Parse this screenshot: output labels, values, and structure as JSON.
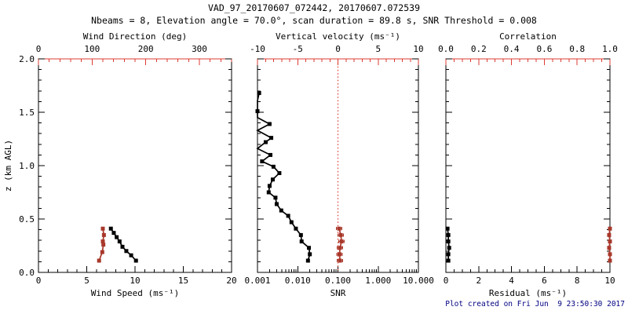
{
  "title": "VAD_97_20170607_072442, 20170607.072539",
  "subtitle": "Nbeams = 8, Elevation angle = 70.0°, scan duration = 89.8 s, SNR Threshold = 0.008",
  "footer": "Plot created on Fri Jun  9 23:50:30 2017",
  "colors": {
    "background": "#ffffff",
    "frame_black": "#000000",
    "axis_red": "#dd3b33",
    "marker_red": "#a8382b",
    "data_black": "#000000",
    "footer_blue": "#000080"
  },
  "yaxis": {
    "label": "z (km AGL)",
    "min": 0,
    "max": 2,
    "majors": [
      0,
      0.5,
      1,
      1.5,
      2
    ],
    "tick_labels": [
      "0.0",
      "0.5",
      "1.0",
      "1.5",
      "2.0"
    ],
    "minor_step": 0.1
  },
  "chart_data": [
    {
      "type": "line",
      "panel": "wind",
      "bottom_axis": {
        "label": "Wind Speed (ms⁻¹)",
        "min": 0,
        "max": 20,
        "majors": [
          0,
          5,
          10,
          15,
          20
        ],
        "tick_labels": [
          "0",
          "5",
          "10",
          "15",
          "20"
        ],
        "minor_step": 1
      },
      "top_axis": {
        "label": "Wind Direction (deg)",
        "min": 0,
        "max": 360,
        "majors": [
          0,
          100,
          200,
          300
        ],
        "tick_labels": [
          "0",
          "100",
          "200",
          "300"
        ],
        "minor_step": 20
      },
      "series": [
        {
          "name": "wind-speed",
          "axis": "bottom",
          "color": "black",
          "marker": "square",
          "points": [
            [
              0.41,
              7.5
            ],
            [
              0.37,
              7.8
            ],
            [
              0.33,
              8.1
            ],
            [
              0.29,
              8.4
            ],
            [
              0.24,
              8.7
            ],
            [
              0.2,
              9.1
            ],
            [
              0.16,
              9.6
            ],
            [
              0.11,
              10.1
            ]
          ]
        },
        {
          "name": "wind-direction",
          "axis": "top",
          "color": "red",
          "marker": "square",
          "points": [
            [
              0.41,
              120
            ],
            [
              0.35,
              122
            ],
            [
              0.29,
              120
            ],
            [
              0.26,
              121
            ],
            [
              0.19,
              119
            ],
            [
              0.11,
              113
            ]
          ]
        }
      ]
    },
    {
      "type": "line",
      "panel": "snr",
      "bottom_axis": {
        "label": "SNR",
        "scale": "log",
        "min": 0.001,
        "max": 10,
        "majors": [
          0.001,
          0.01,
          0.1,
          1,
          10
        ],
        "tick_labels": [
          "0.001",
          "0.010",
          "0.100",
          "1.000",
          "10.000"
        ]
      },
      "top_axis": {
        "label": "Vertical velocity (ms⁻¹)",
        "min": -10,
        "max": 10,
        "majors": [
          -10,
          -5,
          0,
          5,
          10
        ],
        "tick_labels": [
          "-10",
          "-5",
          "0",
          "5",
          "10"
        ],
        "minor_step": 1
      },
      "ref_line": {
        "axis": "top",
        "value": 0,
        "style": "dotted"
      },
      "series": [
        {
          "name": "snr-profile",
          "axis": "bottom",
          "color": "black",
          "marker": "square",
          "points": [
            [
              1.68,
              0.0011
            ],
            [
              1.61,
              0.0007,
              1
            ],
            [
              1.51,
              0.001
            ],
            [
              1.45,
              0.0007,
              1
            ],
            [
              1.39,
              0.002
            ],
            [
              1.33,
              0.0007,
              1
            ],
            [
              1.26,
              0.0022
            ],
            [
              1.22,
              0.0016
            ],
            [
              1.16,
              0.0007,
              1
            ],
            [
              1.1,
              0.0021
            ],
            [
              1.04,
              0.0013
            ],
            [
              0.99,
              0.0025
            ],
            [
              0.93,
              0.0035
            ],
            [
              0.87,
              0.0024
            ],
            [
              0.81,
              0.002
            ],
            [
              0.75,
              0.0019
            ],
            [
              0.7,
              0.0028
            ],
            [
              0.64,
              0.003
            ],
            [
              0.58,
              0.0039
            ],
            [
              0.53,
              0.0058
            ],
            [
              0.47,
              0.007
            ],
            [
              0.41,
              0.009
            ],
            [
              0.35,
              0.012
            ],
            [
              0.29,
              0.0125
            ],
            [
              0.23,
              0.019
            ],
            [
              0.17,
              0.02
            ],
            [
              0.11,
              0.018
            ]
          ]
        },
        {
          "name": "vertical-velocity",
          "axis": "top",
          "color": "red",
          "marker": "square",
          "error": 0.35,
          "points": [
            [
              0.41,
              0.15
            ],
            [
              0.35,
              0.35
            ],
            [
              0.29,
              0.45
            ],
            [
              0.23,
              0.25
            ],
            [
              0.17,
              0.2
            ],
            [
              0.11,
              0.25
            ]
          ]
        }
      ]
    },
    {
      "type": "line",
      "panel": "residual",
      "bottom_axis": {
        "label": "Residual (ms⁻¹)",
        "min": 0,
        "max": 10,
        "majors": [
          0,
          2,
          4,
          6,
          8,
          10
        ],
        "tick_labels": [
          "0",
          "2",
          "4",
          "6",
          "8",
          "10"
        ],
        "minor_step": 0.5
      },
      "top_axis": {
        "label": "Correlation",
        "min": 0,
        "max": 1,
        "majors": [
          0,
          0.2,
          0.4,
          0.6,
          0.8,
          1
        ],
        "tick_labels": [
          "0.0",
          "0.2",
          "0.4",
          "0.6",
          "0.8",
          "1.0"
        ],
        "minor_step": 0.05
      },
      "series": [
        {
          "name": "residual",
          "axis": "bottom",
          "color": "black",
          "marker": "square",
          "points": [
            [
              0.41,
              0.1
            ],
            [
              0.35,
              0.15
            ],
            [
              0.29,
              0.15
            ],
            [
              0.23,
              0.2
            ],
            [
              0.17,
              0.15
            ],
            [
              0.11,
              0.15
            ]
          ]
        },
        {
          "name": "correlation",
          "axis": "top",
          "color": "red",
          "marker": "square",
          "points": [
            [
              0.41,
              1.0
            ],
            [
              0.35,
              0.995
            ],
            [
              0.29,
              1.0
            ],
            [
              0.23,
              0.995
            ],
            [
              0.17,
              1.0
            ],
            [
              0.11,
              1.0
            ]
          ]
        }
      ]
    }
  ]
}
